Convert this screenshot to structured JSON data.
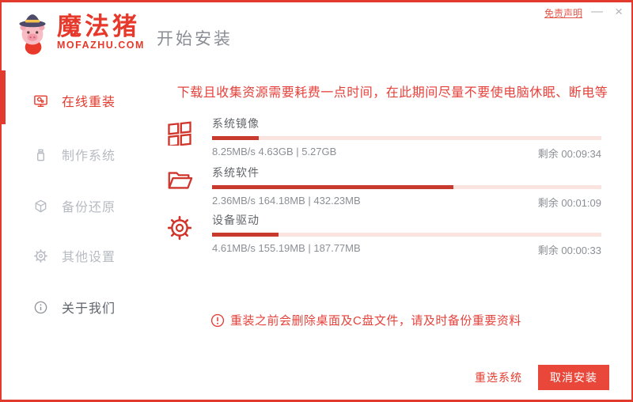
{
  "window": {
    "disclaimer": "免责声明",
    "minimize": "—",
    "close": "×"
  },
  "brand": {
    "name": "魔法猪",
    "domain": "MOFAZHU.COM",
    "mascot": "pig-wizard-mascot"
  },
  "header": {
    "title": "开始安装"
  },
  "sidebar": {
    "items": [
      {
        "label": "在线重装",
        "icon": "monitor-reinstall-icon",
        "active": true
      },
      {
        "label": "制作系统",
        "icon": "usb-drive-icon",
        "active": false
      },
      {
        "label": "备份还原",
        "icon": "backup-cube-icon",
        "active": false
      },
      {
        "label": "其他设置",
        "icon": "gear-icon",
        "active": false
      },
      {
        "label": "关于我们",
        "icon": "info-icon",
        "active": false
      }
    ]
  },
  "main": {
    "notice": "下载且收集资源需要耗费一点时间，在此期间尽量不要使电脑休眠、断电等",
    "tasks": [
      {
        "name": "系统镜像",
        "icon": "windows-logo-icon",
        "stats": "8.25MB/s 4.63GB | 5.27GB",
        "remaining": "剩余 00:09:34",
        "progress_percent": 12
      },
      {
        "name": "系统软件",
        "icon": "folder-icon",
        "stats": "2.36MB/s 164.18MB | 432.23MB",
        "remaining": "剩余 00:01:09",
        "progress_percent": 62
      },
      {
        "name": "设备驱动",
        "icon": "gear-icon",
        "stats": "4.61MB/s 155.19MB | 187.77MB",
        "remaining": "剩余 00:00:33",
        "progress_percent": 17
      }
    ],
    "warning": "重装之前会删除桌面及C盘文件，请及时备份重要资料"
  },
  "footer": {
    "reselect": "重选系统",
    "cancel": "取消安装"
  },
  "colors": {
    "accent": "#e23b2e",
    "bar-fill": "#c83a2e",
    "bar-track": "#fbe3e0",
    "inactive": "#b7bbc2",
    "muted": "#8b8f95",
    "dark": "#63666b"
  }
}
